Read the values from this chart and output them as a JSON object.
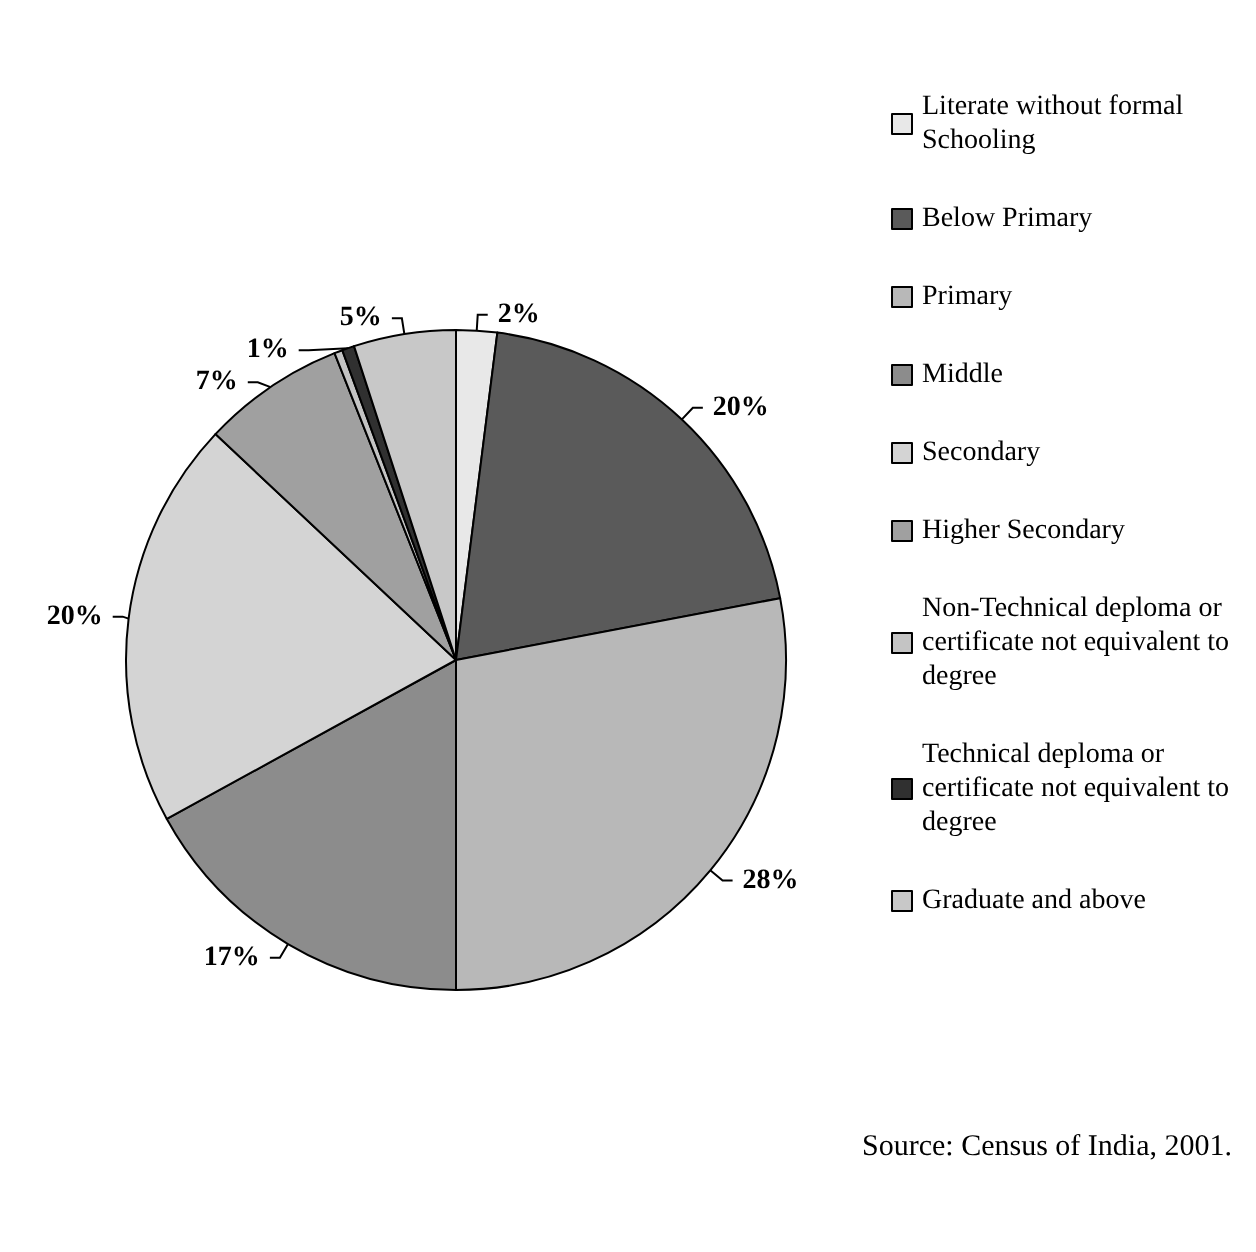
{
  "chart_data": {
    "type": "pie",
    "categories": [
      "Literate without formal Schooling",
      "Below Primary",
      "Primary",
      "Middle",
      "Secondary",
      "Higher Secondary",
      "Non-Technical deploma or certificate not equivalent to degree",
      "Technical deploma or certificate not equivalent to degree",
      "Graduate and above"
    ],
    "values": [
      2,
      20,
      28,
      17,
      20,
      7,
      0.4,
      0.6,
      5
    ],
    "value_labels": [
      "2%",
      "20%",
      "28%",
      "17%",
      "20%",
      "7%",
      null,
      "1%",
      "5%"
    ],
    "colors": [
      "#e8e8e8",
      "#5a5a5a",
      "#b8b8b8",
      "#8c8c8c",
      "#d4d4d4",
      "#a0a0a0",
      "#c4c4c4",
      "#303030",
      "#c8c8c8"
    ],
    "legend": "right",
    "annotations": [
      "Source: Census of India, 2001."
    ]
  }
}
